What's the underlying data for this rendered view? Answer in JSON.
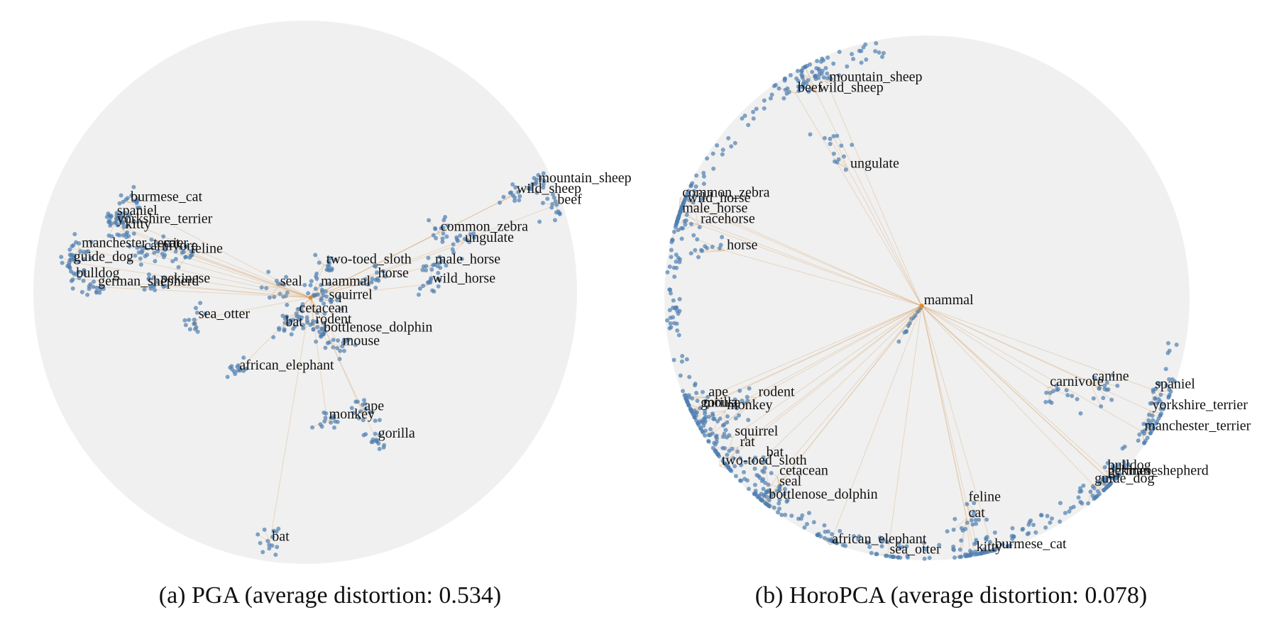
{
  "chart_data": [
    {
      "type": "scatter",
      "title": "(a) PGA (average distortion: 0.534)",
      "xlim": [
        -1,
        1
      ],
      "ylim": [
        -1,
        1
      ],
      "grid": false,
      "labeled_points": [
        {
          "label": "mountain_sheep",
          "x": 0.85,
          "y": 0.4
        },
        {
          "label": "wild_sheep",
          "x": 0.77,
          "y": 0.36
        },
        {
          "label": "beef",
          "x": 0.92,
          "y": 0.32
        },
        {
          "label": "common_zebra",
          "x": 0.49,
          "y": 0.22
        },
        {
          "label": "ungulate",
          "x": 0.58,
          "y": 0.18
        },
        {
          "label": "two-toed_sloth",
          "x": 0.07,
          "y": 0.1
        },
        {
          "label": "male_horse",
          "x": 0.47,
          "y": 0.1
        },
        {
          "label": "horse",
          "x": 0.26,
          "y": 0.05
        },
        {
          "label": "wild_horse",
          "x": 0.46,
          "y": 0.03
        },
        {
          "label": "mammal",
          "x": 0.05,
          "y": 0.02
        },
        {
          "label": "seal",
          "x": -0.1,
          "y": 0.02
        },
        {
          "label": "squirrel",
          "x": 0.08,
          "y": -0.03
        },
        {
          "label": "cetacean",
          "x": -0.03,
          "y": -0.08
        },
        {
          "label": "rodent",
          "x": 0.03,
          "y": -0.12
        },
        {
          "label": "bat",
          "x": -0.08,
          "y": -0.13
        },
        {
          "label": "bottlenose_dolphin",
          "x": 0.06,
          "y": -0.15
        },
        {
          "label": "mouse",
          "x": 0.13,
          "y": -0.2
        },
        {
          "label": "sea_otter",
          "x": -0.4,
          "y": -0.1
        },
        {
          "label": "african_elephant",
          "x": -0.25,
          "y": -0.29
        },
        {
          "label": "burmese_cat",
          "x": -0.65,
          "y": 0.33
        },
        {
          "label": "spaniel",
          "x": -0.7,
          "y": 0.28
        },
        {
          "label": "yorkshire_terrier",
          "x": -0.7,
          "y": 0.25
        },
        {
          "label": "kitty",
          "x": -0.67,
          "y": 0.23
        },
        {
          "label": "manchester_terrier",
          "x": -0.83,
          "y": 0.16
        },
        {
          "label": "cat",
          "x": -0.53,
          "y": 0.16
        },
        {
          "label": "carnivore",
          "x": -0.6,
          "y": 0.15
        },
        {
          "label": "feline",
          "x": -0.43,
          "y": 0.14
        },
        {
          "label": "guide_dog",
          "x": -0.86,
          "y": 0.11
        },
        {
          "label": "bulldog",
          "x": -0.85,
          "y": 0.05
        },
        {
          "label": "german_shepherd",
          "x": -0.77,
          "y": 0.02
        },
        {
          "label": "pekinese",
          "x": -0.54,
          "y": 0.03
        },
        {
          "label": "ape",
          "x": 0.21,
          "y": -0.44
        },
        {
          "label": "monkey",
          "x": 0.08,
          "y": -0.47
        },
        {
          "label": "gorilla",
          "x": 0.26,
          "y": -0.54
        },
        {
          "label": "bat",
          "x": -0.13,
          "y": -0.92
        }
      ]
    },
    {
      "type": "scatter",
      "title": "(b) HoroPCA (average distortion: 0.078)",
      "xlim": [
        -1,
        1
      ],
      "ylim": [
        -1,
        1
      ],
      "grid": false,
      "labeled_points": [
        {
          "label": "mountain_sheep",
          "x": -0.38,
          "y": 0.82
        },
        {
          "label": "wild_sheep",
          "x": -0.42,
          "y": 0.78
        },
        {
          "label": "beef",
          "x": -0.5,
          "y": 0.78
        },
        {
          "label": "ungulate",
          "x": -0.3,
          "y": 0.49
        },
        {
          "label": "common_zebra",
          "x": -0.94,
          "y": 0.38
        },
        {
          "label": "wild_horse",
          "x": -0.92,
          "y": 0.36
        },
        {
          "label": "male_horse",
          "x": -0.94,
          "y": 0.32
        },
        {
          "label": "racehorse",
          "x": -0.87,
          "y": 0.28
        },
        {
          "label": "horse",
          "x": -0.77,
          "y": 0.18
        },
        {
          "label": "mammal",
          "x": -0.02,
          "y": -0.03
        },
        {
          "label": "carnivore",
          "x": 0.46,
          "y": -0.34
        },
        {
          "label": "canine",
          "x": 0.62,
          "y": -0.32
        },
        {
          "label": "spaniel",
          "x": 0.86,
          "y": -0.35
        },
        {
          "label": "yorkshire_terrier",
          "x": 0.85,
          "y": -0.43
        },
        {
          "label": "manchester_terrier",
          "x": 0.82,
          "y": -0.51
        },
        {
          "label": "bulldog",
          "x": 0.68,
          "y": -0.66
        },
        {
          "label": "german_shepherd",
          "x": 0.68,
          "y": -0.68
        },
        {
          "label": "pekinese",
          "x": 0.68,
          "y": -0.68
        },
        {
          "label": "guide_dog",
          "x": 0.63,
          "y": -0.71
        },
        {
          "label": "ape",
          "x": -0.84,
          "y": -0.38
        },
        {
          "label": "gorilla",
          "x": -0.87,
          "y": -0.42
        },
        {
          "label": "mouse",
          "x": -0.86,
          "y": -0.42
        },
        {
          "label": "rodent",
          "x": -0.65,
          "y": -0.38
        },
        {
          "label": "monkey",
          "x": -0.77,
          "y": -0.43
        },
        {
          "label": "squirrel",
          "x": -0.74,
          "y": -0.53
        },
        {
          "label": "rat",
          "x": -0.72,
          "y": -0.57
        },
        {
          "label": "bat",
          "x": -0.62,
          "y": -0.61
        },
        {
          "label": "two-toed_sloth",
          "x": -0.79,
          "y": -0.64
        },
        {
          "label": "cetacean",
          "x": -0.57,
          "y": -0.68
        },
        {
          "label": "seal",
          "x": -0.57,
          "y": -0.72
        },
        {
          "label": "bottlenose_dolphin",
          "x": -0.61,
          "y": -0.77
        },
        {
          "label": "feline",
          "x": 0.15,
          "y": -0.78
        },
        {
          "label": "cat",
          "x": 0.15,
          "y": -0.84
        },
        {
          "label": "african_elephant",
          "x": -0.37,
          "y": -0.94
        },
        {
          "label": "sea_otter",
          "x": -0.15,
          "y": -0.98
        },
        {
          "label": "kitty",
          "x": 0.18,
          "y": -0.97
        },
        {
          "label": "burmese_cat",
          "x": 0.25,
          "y": -0.96
        }
      ]
    }
  ],
  "colors": {
    "disk": "#f0f0f0",
    "points": "#4f7fb0",
    "edges": "#d8a36a",
    "hub": "#e08a2a"
  }
}
